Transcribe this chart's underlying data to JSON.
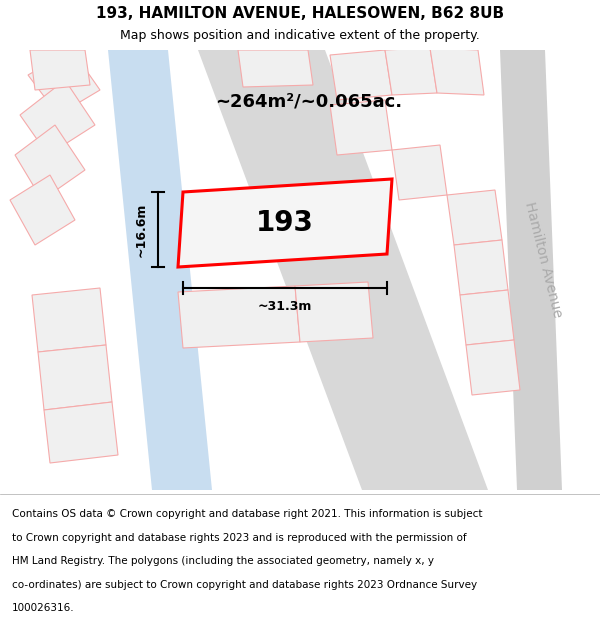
{
  "title": "193, HAMILTON AVENUE, HALESOWEN, B62 8UB",
  "subtitle": "Map shows position and indicative extent of the property.",
  "footer_lines": [
    "Contains OS data © Crown copyright and database right 2021. This information is subject",
    "to Crown copyright and database rights 2023 and is reproduced with the permission of",
    "HM Land Registry. The polygons (including the associated geometry, namely x, y",
    "co-ordinates) are subject to Crown copyright and database rights 2023 Ordnance Survey",
    "100026316."
  ],
  "area_label": "~264m²/~0.065ac.",
  "number_label": "193",
  "dim_width": "~31.3m",
  "dim_height": "~16.6m",
  "street_label": "Hamilton Avenue",
  "bg_color": "#efefef",
  "plot_fill": "#f5f5f5",
  "plot_edge": "#ff0000",
  "water_color": "#c8ddf0",
  "road_color": "#d8d8d8",
  "block_fill": "#f0f0f0",
  "block_edge": "#f5aaaa",
  "title_fontsize": 11,
  "subtitle_fontsize": 9,
  "footer_fontsize": 7.5,
  "area_fontsize": 13,
  "num_fontsize": 20,
  "dim_fontsize": 9,
  "street_fontsize": 10
}
